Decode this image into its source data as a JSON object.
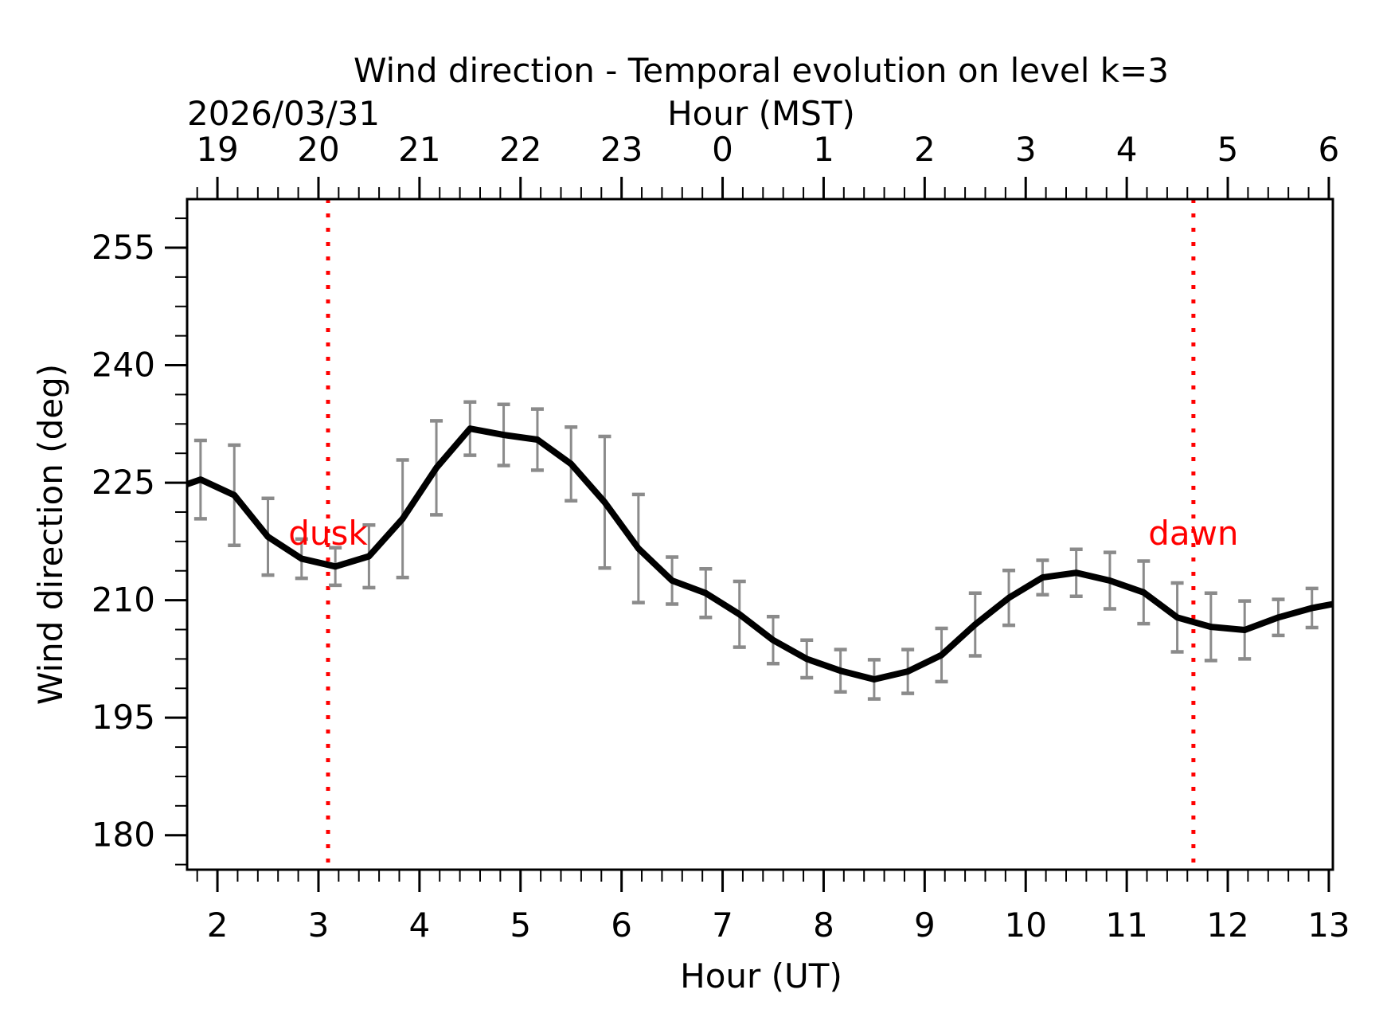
{
  "chart_data": {
    "type": "line",
    "title": "Wind direction - Temporal evolution on level k=3",
    "date_label": "2026/03/31",
    "top_axis_label": "Hour (MST)",
    "xlabel": "Hour (UT)",
    "ylabel": "Wind direction (deg)",
    "xlim": [
      1.7,
      13.04
    ],
    "ylim": [
      175.6,
      261.2
    ],
    "x_major_ticks": [
      2,
      3,
      4,
      5,
      6,
      7,
      8,
      9,
      10,
      11,
      12,
      13
    ],
    "x_tick_labels_ut": [
      "2",
      "3",
      "4",
      "5",
      "6",
      "7",
      "8",
      "9",
      "10",
      "11",
      "12",
      "13"
    ],
    "x_tick_labels_mst": [
      "19",
      "20",
      "21",
      "22",
      "23",
      "0",
      "1",
      "2",
      "3",
      "4",
      "5",
      "6"
    ],
    "x_minor_step": 0.2,
    "y_major_ticks": [
      180,
      195,
      210,
      225,
      240,
      255
    ],
    "y_tick_labels": [
      "180",
      "195",
      "210",
      "225",
      "240",
      "255"
    ],
    "y_minor_step": 3.75,
    "grid": false,
    "legend": "none",
    "series": [
      {
        "name": "wind-direction",
        "x": [
          1.833,
          2.167,
          2.5,
          2.833,
          3.167,
          3.5,
          3.833,
          4.167,
          4.5,
          4.833,
          5.167,
          5.5,
          5.833,
          6.167,
          6.5,
          6.833,
          7.167,
          7.5,
          7.833,
          8.167,
          8.5,
          8.833,
          9.167,
          9.5,
          9.833,
          10.167,
          10.5,
          10.833,
          11.167,
          11.5,
          11.833,
          12.167,
          12.5,
          12.833
        ],
        "y": [
          225.4,
          223.4,
          218.1,
          215.3,
          214.3,
          215.6,
          220.4,
          226.9,
          231.9,
          231.1,
          230.5,
          227.4,
          222.5,
          216.6,
          212.5,
          210.9,
          208.2,
          204.9,
          202.5,
          201.0,
          199.9,
          200.9,
          203.0,
          206.9,
          210.3,
          212.9,
          213.5,
          212.5,
          211.0,
          207.8,
          206.6,
          206.2,
          207.8,
          209.0
        ],
        "yerr": [
          5.0,
          6.4,
          4.9,
          2.5,
          2.4,
          4.0,
          7.5,
          6.0,
          3.4,
          3.9,
          3.9,
          4.7,
          8.4,
          6.9,
          3.0,
          3.1,
          4.2,
          3.0,
          2.4,
          2.7,
          2.5,
          2.8,
          3.4,
          4.0,
          3.5,
          2.2,
          3.0,
          3.6,
          4.0,
          4.4,
          4.3,
          3.7,
          2.3,
          2.5
        ]
      }
    ],
    "clipped_line_start": {
      "x": 1.7,
      "y": 224.8
    },
    "clipped_line_end": {
      "x": 13.04,
      "y": 209.5
    },
    "annotations": [
      {
        "id": "dusk",
        "label": "dusk",
        "x": 3.095,
        "label_y": 217.1
      },
      {
        "id": "dawn",
        "label": "dawn",
        "x": 11.66,
        "label_y": 217.1
      }
    ],
    "colors": {
      "line": "#000000",
      "error_bar": "#8b8b8b",
      "annotation": "#ff0000",
      "frame": "#000000",
      "background": "#ffffff"
    }
  }
}
